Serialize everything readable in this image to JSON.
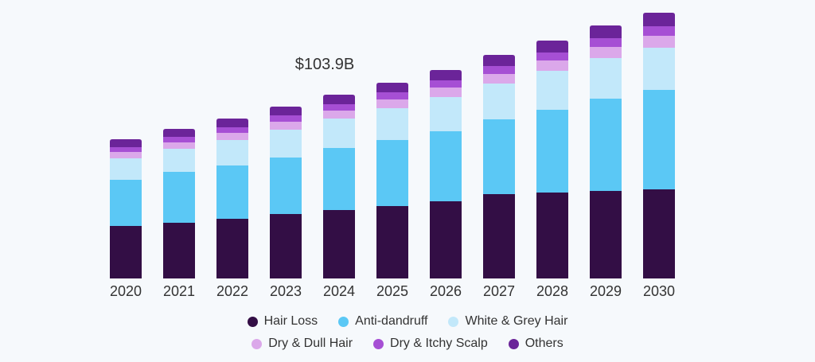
{
  "chart_data": {
    "type": "bar",
    "stacked": true,
    "title": "",
    "xlabel": "",
    "ylabel": "",
    "ylim": [
      0,
      340
    ],
    "categories": [
      "2020",
      "2021",
      "2022",
      "2023",
      "2024",
      "2025",
      "2026",
      "2027",
      "2028",
      "2029",
      "2030"
    ],
    "series": [
      {
        "name": "Hair Loss",
        "color": "#330e45",
        "values": [
          66,
          70,
          75,
          81,
          86,
          91,
          97,
          106,
          108,
          110,
          112
        ]
      },
      {
        "name": "Anti-dandruff",
        "color": "#5bc8f5",
        "values": [
          58,
          64,
          67,
          71,
          78,
          83,
          88,
          94,
          104,
          116,
          125
        ]
      },
      {
        "name": "White & Grey Hair",
        "color": "#c2e8fa",
        "values": [
          27,
          29,
          32,
          35,
          37,
          40,
          43,
          45,
          49,
          51,
          53
        ]
      },
      {
        "name": "Dry & Dull Hair",
        "color": "#dba8ea",
        "values": [
          8,
          8,
          9,
          10,
          10,
          11,
          12,
          12,
          13,
          14,
          15
        ]
      },
      {
        "name": "Dry & Itchy Scalp",
        "color": "#a64fd4",
        "values": [
          6,
          7,
          7,
          8,
          8,
          9,
          9,
          10,
          10,
          11,
          12
        ]
      },
      {
        "name": "Others",
        "color": "#6b2499",
        "values": [
          10,
          10,
          11,
          11,
          12,
          12,
          13,
          14,
          15,
          16,
          17
        ]
      }
    ],
    "annotations": [
      {
        "category": "2024",
        "text": "$103.9B"
      }
    ],
    "legend_position": "bottom",
    "grid": false
  }
}
